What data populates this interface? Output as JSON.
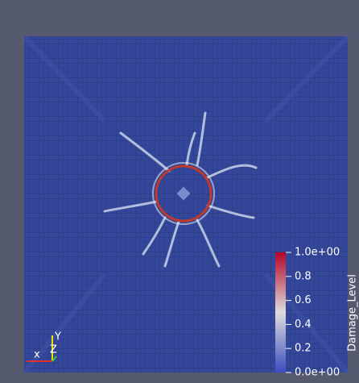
{
  "colorbar": {
    "title": "Damage_Level",
    "range": [
      0,
      1
    ],
    "ticks": [
      {
        "value": 1,
        "label": "1.0e+00"
      },
      0.8,
      0.6,
      0.4,
      0.2,
      {
        "value": 0,
        "label": "0.0e+00"
      }
    ]
  },
  "axes_triad": {
    "x": "x",
    "y": "Y",
    "z": "Z"
  }
}
